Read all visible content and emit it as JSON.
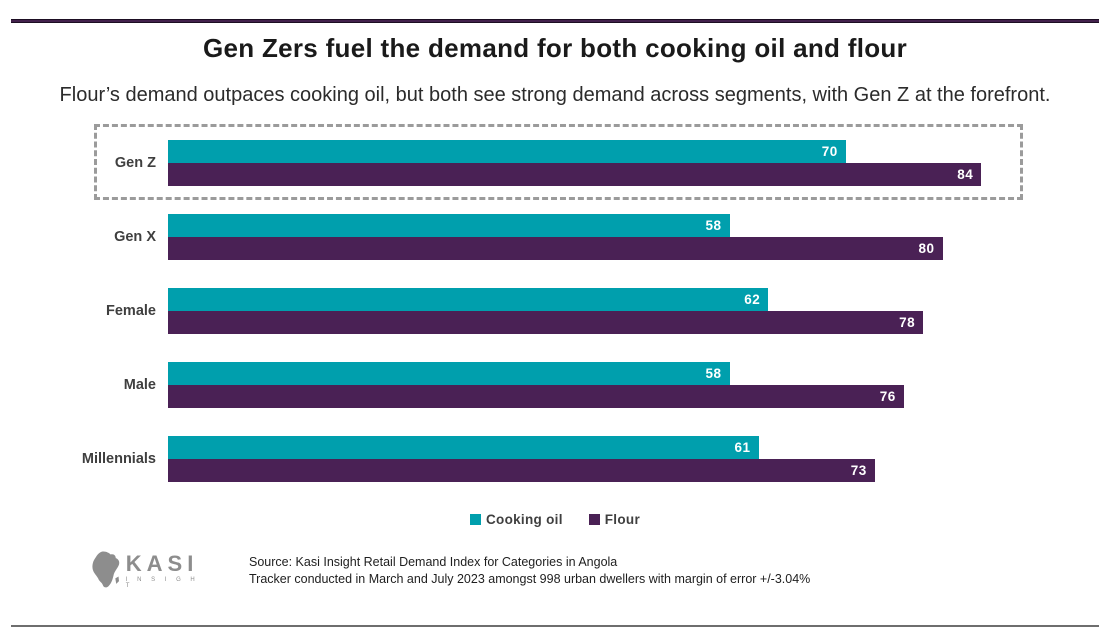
{
  "header": {
    "title": "Gen Zers fuel the demand for both cooking oil and flour",
    "subtitle": "Flour’s demand outpaces cooking oil, but both see strong demand across segments, with Gen Z at the forefront."
  },
  "chart_data": {
    "type": "bar",
    "orientation": "horizontal",
    "title": "Gen Zers fuel the demand for both cooking oil and flour",
    "categories": [
      "Gen Z",
      "Gen X",
      "Female",
      "Male",
      "Millennials"
    ],
    "series": [
      {
        "name": "Cooking oil",
        "color": "#009FAD",
        "values": [
          70,
          58,
          62,
          58,
          61
        ]
      },
      {
        "name": "Flour",
        "color": "#4A2155",
        "values": [
          84,
          80,
          78,
          76,
          73
        ]
      }
    ],
    "xlim": [
      0,
      88
    ],
    "grid": false,
    "data_labels": "inside-end",
    "legend_position": "bottom",
    "highlighted_category": "Gen Z"
  },
  "footer": {
    "logo_kasi": "KASI",
    "logo_insight": "I N S I G H T",
    "source_line1": "Source: Kasi Insight Retail Demand Index for Categories in Angola",
    "source_line2": "Tracker conducted in March and July 2023 amongst 998 urban dwellers with margin of error +/-3.04%"
  },
  "colors": {
    "cooking_oil": "#009FAD",
    "flour": "#4A2155",
    "top_rule": "#43214C",
    "highlight_border": "#9B9B9B",
    "bottom_rule": "#6E6E6E"
  }
}
